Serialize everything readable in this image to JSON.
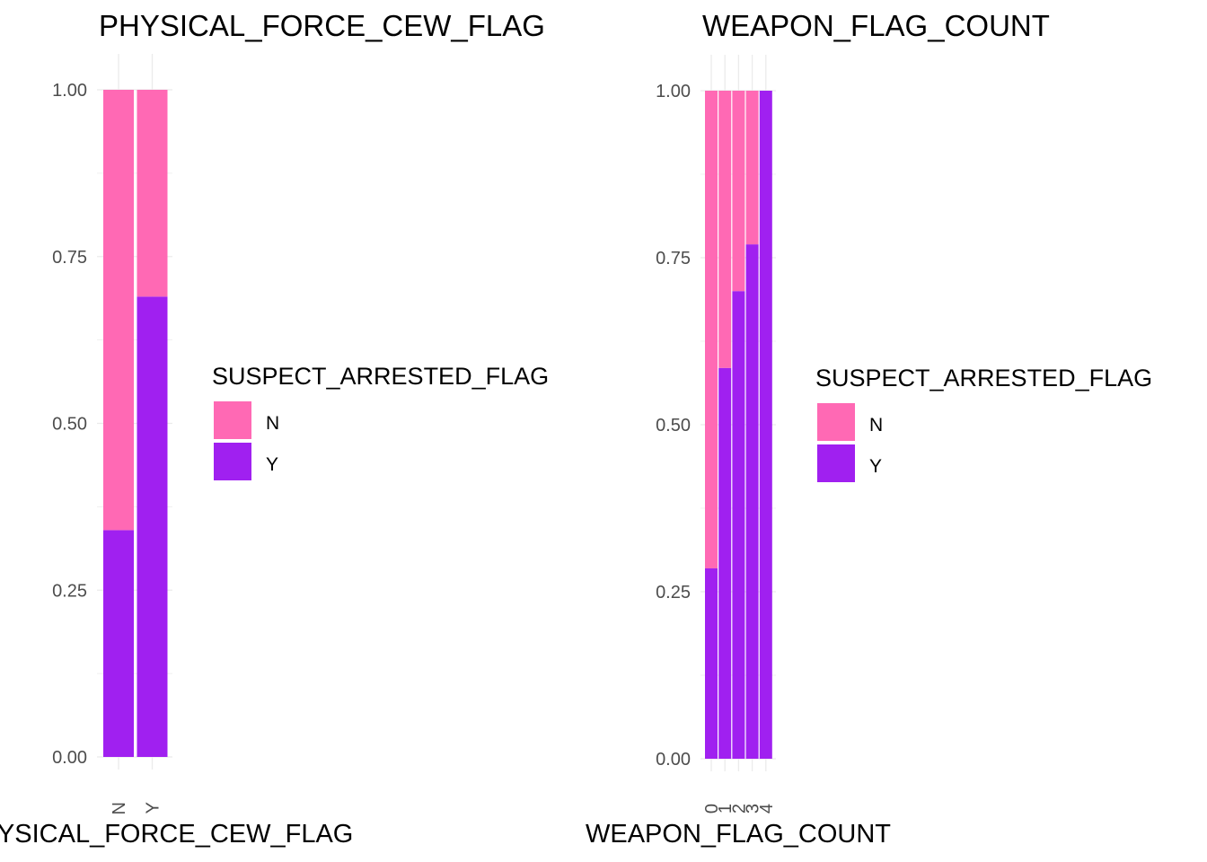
{
  "colors": {
    "N": "#ff69b4",
    "Y": "#a020f0",
    "grid": "#ebebeb",
    "tick_text": "#4d4d4d"
  },
  "chart_data": [
    {
      "type": "bar",
      "stacked": "fill",
      "title": "PHYSICAL_FORCE_CEW_FLAG",
      "xlabel": "PHYSICAL_FORCE_CEW_FLAG",
      "ylabel": "",
      "categories": [
        "N",
        "Y"
      ],
      "series": [
        {
          "name": "Y",
          "values": [
            0.34,
            0.69
          ]
        },
        {
          "name": "N",
          "values": [
            0.66,
            0.31
          ]
        }
      ],
      "ylim": [
        0,
        1
      ],
      "yticks": [
        "0.00",
        "0.25",
        "0.50",
        "0.75",
        "1.00"
      ],
      "grid": true,
      "legend": {
        "title": "SUSPECT_ARRESTED_FLAG",
        "entries": [
          "N",
          "Y"
        ],
        "placement": "right"
      }
    },
    {
      "type": "bar",
      "stacked": "fill",
      "title": "WEAPON_FLAG_COUNT",
      "xlabel": "WEAPON_FLAG_COUNT",
      "ylabel": "",
      "categories": [
        "0",
        "1",
        "2",
        "3",
        "4"
      ],
      "series": [
        {
          "name": "Y",
          "values": [
            0.285,
            0.585,
            0.7,
            0.77,
            1.0
          ]
        },
        {
          "name": "N",
          "values": [
            0.715,
            0.415,
            0.3,
            0.23,
            0.0
          ]
        }
      ],
      "ylim": [
        0,
        1
      ],
      "yticks": [
        "0.00",
        "0.25",
        "0.50",
        "0.75",
        "1.00"
      ],
      "grid": true,
      "legend": {
        "title": "SUSPECT_ARRESTED_FLAG",
        "entries": [
          "N",
          "Y"
        ],
        "placement": "right"
      }
    }
  ]
}
